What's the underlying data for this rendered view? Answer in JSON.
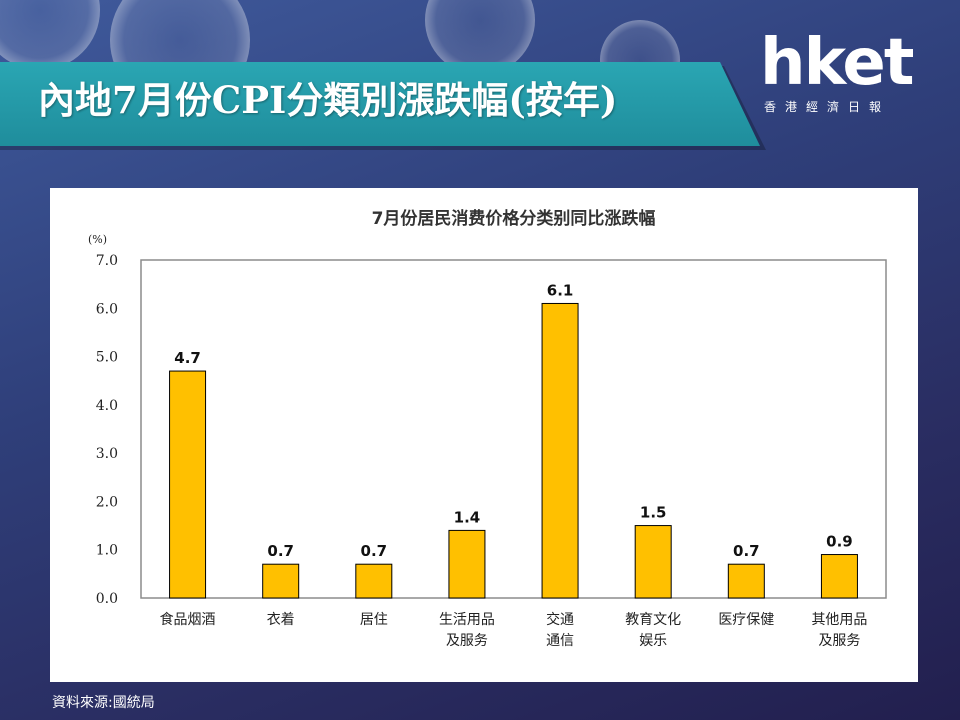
{
  "page": {
    "headline": "內地7月份CPI分類別漲跌幅(按年)",
    "source": "資料來源:國統局"
  },
  "logo": {
    "main": "hket",
    "sub": "香港經濟日報"
  },
  "colors": {
    "bar": "#ffc000",
    "banner": "#1f9aa8"
  },
  "chart_data": {
    "type": "bar",
    "title": "7月份居民消费价格分类别同比涨跌幅",
    "ylabel": "(%)",
    "ylim": [
      0,
      7
    ],
    "yticks": [
      "7.0",
      "6.0",
      "5.0",
      "4.0",
      "3.0",
      "2.0",
      "1.0",
      "0.0"
    ],
    "grid": false,
    "categories": [
      [
        "食品烟酒"
      ],
      [
        "衣着"
      ],
      [
        "居住"
      ],
      [
        "生活用品",
        "及服务"
      ],
      [
        "交通",
        "通信"
      ],
      [
        "教育文化",
        "娱乐"
      ],
      [
        "医疗保健"
      ],
      [
        "其他用品",
        "及服务"
      ]
    ],
    "values": [
      4.7,
      0.7,
      0.7,
      1.4,
      6.1,
      1.5,
      0.7,
      0.9
    ],
    "value_labels": [
      "4.7",
      "0.7",
      "0.7",
      "1.4",
      "6.1",
      "1.5",
      "0.7",
      "0.9"
    ]
  }
}
